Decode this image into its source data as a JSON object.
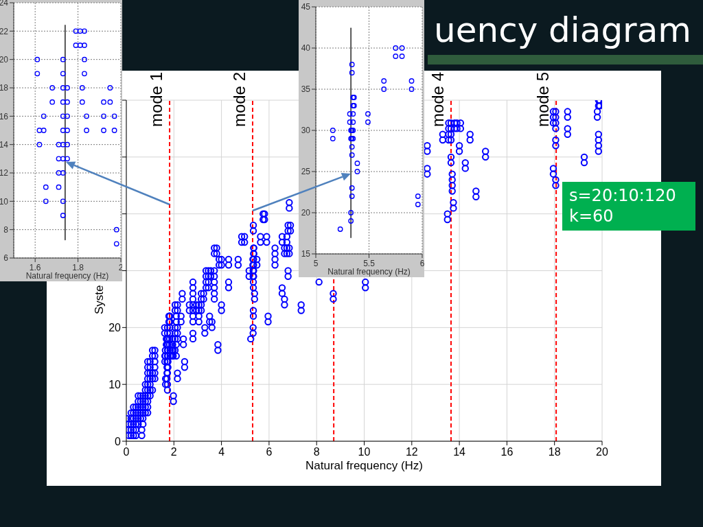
{
  "chart_data": [
    {
      "type": "scatter",
      "xlabel": "Natural frequency (Hz)",
      "xlim": [
        1.5,
        2
      ],
      "xticks": [
        1.6,
        1.8,
        2
      ],
      "ylim": [
        6,
        24
      ],
      "yticks": [
        6,
        8,
        10,
        12,
        14,
        16,
        18,
        20,
        22,
        24
      ],
      "grid": true,
      "marker": "circle",
      "series": [
        {
          "type": "scatter",
          "color": "#0000ff",
          "x": [
            1.79,
            1.81,
            1.83,
            1.79,
            1.81,
            1.83,
            1.61,
            1.73,
            1.83,
            1.61,
            1.73,
            1.83,
            1.68,
            1.73,
            1.75,
            1.82,
            1.95,
            1.68,
            1.73,
            1.75,
            1.82,
            1.92,
            1.95,
            1.64,
            1.73,
            1.75,
            1.84,
            1.92,
            1.97,
            1.62,
            1.64,
            1.73,
            1.75,
            1.84,
            1.92,
            1.97,
            1.62,
            1.71,
            1.73,
            1.75,
            1.71,
            1.73,
            1.75,
            1.71,
            1.73,
            1.65,
            1.71,
            1.65,
            1.73,
            1.73,
            1.98,
            1.98
          ],
          "values": [
            22,
            22,
            22,
            21,
            21,
            21,
            20,
            20,
            20,
            19,
            19,
            19,
            18,
            18,
            18,
            18,
            18,
            17,
            17,
            17,
            17,
            17,
            17,
            16,
            16,
            16,
            16,
            16,
            16,
            15,
            15,
            15,
            15,
            15,
            15,
            15,
            14,
            14,
            14,
            14,
            13,
            13,
            13,
            12,
            12,
            11,
            11,
            10,
            10,
            9,
            8,
            7
          ]
        },
        {
          "type": "line",
          "color": "#555555",
          "marker": "none",
          "x": [
            1.74,
            1.74
          ],
          "values": [
            7.3,
            22.4
          ]
        }
      ]
    },
    {
      "type": "scatter",
      "xlabel": "Natural frequency (Hz)",
      "xlim": [
        5,
        6
      ],
      "xticks": [
        5,
        5.5,
        6
      ],
      "ylim": [
        15,
        45
      ],
      "yticks": [
        15,
        20,
        25,
        30,
        35,
        40,
        45
      ],
      "grid": true,
      "marker": "circle",
      "series": [
        {
          "type": "scatter",
          "color": "#0000ff",
          "x": [
            5.75,
            5.81,
            5.75,
            5.81,
            5.34,
            5.34,
            5.64,
            5.9,
            5.64,
            5.9,
            5.35,
            5.36,
            5.35,
            5.36,
            5.32,
            5.35,
            5.49,
            5.32,
            5.35,
            5.49,
            5.16,
            5.33,
            5.34,
            5.35,
            5.16,
            5.33,
            5.34,
            5.35,
            5.34,
            5.34,
            5.39,
            5.39,
            5.34,
            5.34,
            5.96,
            5.96,
            5.33,
            5.33,
            5.23
          ],
          "values": [
            40,
            40,
            39,
            39,
            38,
            37,
            36,
            36,
            35,
            35,
            34,
            34,
            33,
            33,
            32,
            32,
            32,
            31,
            31,
            31,
            30,
            30,
            30,
            30,
            29,
            29,
            29,
            29,
            28,
            27,
            26,
            25,
            23,
            22,
            22,
            21,
            20,
            19,
            18
          ]
        },
        {
          "type": "line",
          "color": "#555555",
          "marker": "none",
          "x": [
            5.33,
            5.33
          ],
          "values": [
            17,
            42.4
          ]
        }
      ]
    },
    {
      "type": "scatter",
      "title": "uency diagram",
      "xlabel": "Natural frequency (Hz)",
      "ylabel": "Syste",
      "xlim": [
        0,
        20
      ],
      "xticks": [
        0,
        2,
        4,
        6,
        8,
        10,
        12,
        14,
        16,
        18,
        20
      ],
      "ylim": [
        0,
        60
      ],
      "yticks": [
        0,
        10,
        20,
        {
          "value": 30,
          "label": null
        },
        {
          "value": 40,
          "label": null
        },
        {
          "value": 50,
          "label": null
        },
        {
          "value": 60,
          "label": null
        }
      ],
      "grid": true,
      "marker": "circle",
      "series": [
        {
          "type": "scatter",
          "color": "#0000ff",
          "x": [
            0.02,
            0.1,
            0.1,
            0.1,
            0.2,
            0.2,
            0.2,
            0.2,
            0.2,
            0.3,
            0.3,
            0.3,
            0.3,
            0.3,
            0.3,
            0.4,
            0.4,
            0.4,
            0.4,
            0.4,
            0.4,
            0.5,
            0.5,
            0.5,
            0.5,
            0.5,
            0.5,
            0.6,
            0.6,
            0.6,
            0.6,
            0.6,
            0.65,
            0.65,
            0.7,
            0.7,
            0.7,
            0.7,
            0.7,
            0.7,
            0.8,
            0.8,
            0.8,
            0.8,
            0.8,
            0.8,
            0.9,
            0.9,
            0.9,
            0.9,
            0.9,
            0.9,
            0.9,
            0.9,
            0.9,
            0.9,
            1,
            1,
            1,
            1,
            1,
            1,
            1,
            1.1,
            1.1,
            1.1,
            1.1,
            1.1,
            1.2,
            1.2,
            1.2,
            1.2,
            1.2,
            1.2,
            1.79,
            1.81,
            1.83,
            1.79,
            1.81,
            1.83,
            1.61,
            1.73,
            1.83,
            1.61,
            1.73,
            1.83,
            1.68,
            1.73,
            1.75,
            1.82,
            1.95,
            1.68,
            1.73,
            1.75,
            1.82,
            1.92,
            1.95,
            1.64,
            1.73,
            1.75,
            1.84,
            1.92,
            1.97,
            1.62,
            1.64,
            1.73,
            1.75,
            1.84,
            1.92,
            1.97,
            1.62,
            1.71,
            1.73,
            1.75,
            1.71,
            1.73,
            1.75,
            1.71,
            1.73,
            1.65,
            1.71,
            1.65,
            1.73,
            1.73,
            1.98,
            1.98,
            2.05,
            2.05,
            2.15,
            2.15,
            2.1,
            2.1,
            2.05,
            2.15,
            2.05,
            2.15,
            2.05,
            2.15,
            2.1,
            2.05,
            2.1,
            2.15,
            2.15,
            2.3,
            2.3,
            2.35,
            2.35,
            2.4,
            2.4,
            2.45,
            2.45,
            2.65,
            2.65,
            2.8,
            2.8,
            2.8,
            2.8,
            2.8,
            2.8,
            2.8,
            2.8,
            2.8,
            2.8,
            2.95,
            2.95,
            3.05,
            3.05,
            3.05,
            3.05,
            3.15,
            3.15,
            3.15,
            3.15,
            3.25,
            3.25,
            3.3,
            3.3,
            3.35,
            3.35,
            3.35,
            3.35,
            3.45,
            3.45,
            3.45,
            3.45,
            3.5,
            3.5,
            3.6,
            3.6,
            3.55,
            3.55,
            3.7,
            3.7,
            3.8,
            3.8,
            3.7,
            3.7,
            3.7,
            3.7,
            3.7,
            3.7,
            3.85,
            3.85,
            3.9,
            3.9,
            4,
            4,
            4,
            4,
            4.3,
            4.3,
            4.3,
            4.3,
            4.7,
            4.7,
            4.85,
            4.85,
            4.97,
            4.97,
            5.75,
            5.81,
            5.75,
            5.81,
            5.34,
            5.34,
            5.64,
            5.9,
            5.64,
            5.9,
            5.35,
            5.36,
            5.35,
            5.36,
            5.32,
            5.35,
            5.49,
            5.32,
            5.35,
            5.49,
            5.16,
            5.33,
            5.34,
            5.35,
            5.16,
            5.33,
            5.34,
            5.35,
            5.34,
            5.34,
            5.39,
            5.39,
            5.34,
            5.34,
            5.96,
            5.96,
            5.33,
            5.33,
            5.23,
            6.25,
            6.25,
            6.25,
            6.25,
            6.55,
            6.55,
            6.65,
            6.65,
            6.75,
            6.75,
            6.85,
            6.85,
            6.75,
            6.75,
            6.8,
            6.8,
            6.9,
            6.9,
            6.85,
            6.85,
            6.8,
            6.8,
            6.55,
            6.55,
            6.65,
            6.65,
            7.35,
            7.35,
            8.1,
            8.7,
            8.7,
            10.05,
            10.05,
            12.65,
            12.65,
            12.65,
            12.65,
            13.3,
            13.3,
            13.55,
            13.55,
            13.55,
            13.55,
            13.65,
            13.65,
            13.65,
            13.65,
            13.65,
            13.65,
            13.7,
            13.7,
            13.7,
            13.7,
            13.75,
            13.75,
            13.5,
            13.5,
            13.8,
            13.8,
            13.9,
            13.9,
            14.05,
            14.05,
            14,
            14,
            14.25,
            14.25,
            14.45,
            14.45,
            14.7,
            14.7,
            15.1,
            15.1,
            17.95,
            17.95,
            17.95,
            18.05,
            18.05,
            18.05,
            18.05,
            18.05,
            18.05,
            17.95,
            17.95,
            18.05,
            18.05,
            18.55,
            18.55,
            18.55,
            18.55,
            19.25,
            19.25,
            19.8,
            19.8,
            19.85,
            19.85,
            19.9,
            19.9,
            19.85,
            19.85,
            19.85,
            19.85
          ],
          "values": [
            4,
            1,
            2,
            3,
            1,
            2,
            3,
            4,
            5,
            1,
            2,
            3,
            4,
            5,
            6,
            1,
            2,
            3,
            4,
            5,
            6,
            3,
            4,
            5,
            6,
            7,
            8,
            4,
            5,
            6,
            7,
            8,
            1,
            2,
            3,
            4,
            5,
            6,
            7,
            8,
            5,
            6,
            7,
            8,
            9,
            10,
            5,
            6,
            7,
            8,
            9,
            10,
            11,
            12,
            13,
            14,
            8,
            9,
            10,
            11,
            12,
            13,
            14,
            9,
            11,
            12,
            15,
            16,
            11,
            12,
            13,
            14,
            15,
            16,
            22,
            22,
            22,
            21,
            21,
            21,
            20,
            20,
            20,
            19,
            19,
            19,
            18,
            18,
            18,
            18,
            18,
            17,
            17,
            17,
            17,
            17,
            17,
            16,
            16,
            16,
            16,
            16,
            16,
            15,
            15,
            15,
            15,
            15,
            15,
            15,
            14,
            14,
            14,
            14,
            13,
            13,
            13,
            12,
            12,
            11,
            11,
            10,
            10,
            9,
            8,
            7,
            24,
            23,
            24,
            23,
            22,
            21,
            20,
            20,
            19,
            19,
            18,
            18,
            17,
            16,
            15,
            12,
            11,
            22,
            21,
            26,
            25,
            18,
            17,
            14,
            13,
            24,
            23,
            28,
            27,
            26,
            25,
            24,
            23,
            22,
            21,
            19,
            18,
            24,
            23,
            24,
            23,
            22,
            21,
            24,
            23,
            26,
            25,
            26,
            25,
            20,
            19,
            30,
            29,
            28,
            27,
            30,
            29,
            28,
            27,
            22,
            21,
            21,
            20,
            30,
            29,
            34,
            33,
            34,
            33,
            30,
            29,
            28,
            27,
            26,
            25,
            17,
            16,
            32,
            31,
            32,
            31,
            24,
            23,
            32,
            31,
            28,
            27,
            32,
            31,
            36,
            35,
            36,
            35,
            40,
            40,
            39,
            39,
            38,
            37,
            36,
            36,
            35,
            35,
            34,
            34,
            33,
            33,
            32,
            32,
            32,
            31,
            31,
            31,
            30,
            30,
            30,
            30,
            29,
            29,
            29,
            29,
            28,
            27,
            26,
            25,
            23,
            22,
            22,
            21,
            20,
            19,
            18,
            34,
            33,
            32,
            31,
            36,
            35,
            34,
            33,
            34,
            33,
            34,
            33,
            36,
            35,
            38,
            37,
            38,
            37,
            42,
            41,
            30,
            29,
            27,
            26,
            25,
            24,
            24,
            23,
            28,
            26,
            25,
            28,
            27,
            52,
            51,
            48,
            47,
            54,
            53,
            56,
            55,
            54,
            53,
            56,
            55,
            54,
            53,
            50,
            49,
            47,
            46,
            45,
            44,
            42,
            41,
            40,
            39,
            56,
            55,
            56,
            55,
            56,
            55,
            52,
            51,
            49,
            48,
            54,
            53,
            44,
            43,
            51,
            50,
            58,
            57,
            56,
            58,
            57,
            56,
            55,
            53,
            52,
            48,
            47,
            46,
            45,
            58,
            57,
            55,
            54,
            50,
            49,
            58,
            57,
            60,
            59,
            60,
            59,
            54,
            53,
            52,
            51
          ]
        }
      ],
      "ref_lines": [
        {
          "axis": "x",
          "value": 1.82,
          "label": "mode 1",
          "color": "#ff0000",
          "line_style": "dashed"
        },
        {
          "axis": "x",
          "value": 5.31,
          "label": "mode 2",
          "color": "#ff0000",
          "line_style": "dashed"
        },
        {
          "axis": "x",
          "value": 8.72,
          "color": "#ff0000",
          "line_style": "dashed"
        },
        {
          "axis": "x",
          "value": 13.65,
          "label": "mode 4",
          "color": "#ff0000",
          "line_style": "dashed"
        },
        {
          "axis": "x",
          "value": 18.07,
          "label": "mode 5",
          "color": "#ff0000",
          "line_style": "dashed"
        }
      ],
      "annotations": [
        "s=20:10:120",
        "k=60"
      ]
    }
  ]
}
